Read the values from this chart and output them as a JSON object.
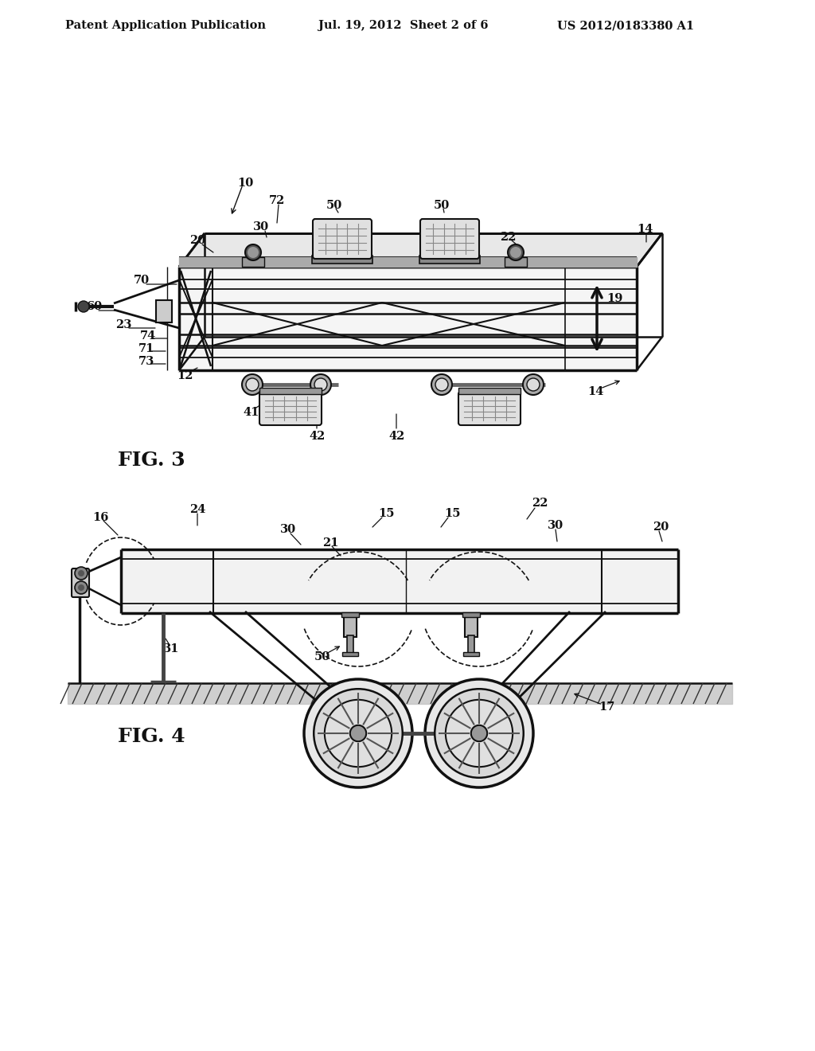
{
  "header_left": "Patent Application Publication",
  "header_mid": "Jul. 19, 2012  Sheet 2 of 6",
  "header_right": "US 2012/0183380 A1",
  "fig3_label": "FIG. 3",
  "fig4_label": "FIG. 4",
  "bg_color": "#ffffff",
  "line_color": "#111111"
}
